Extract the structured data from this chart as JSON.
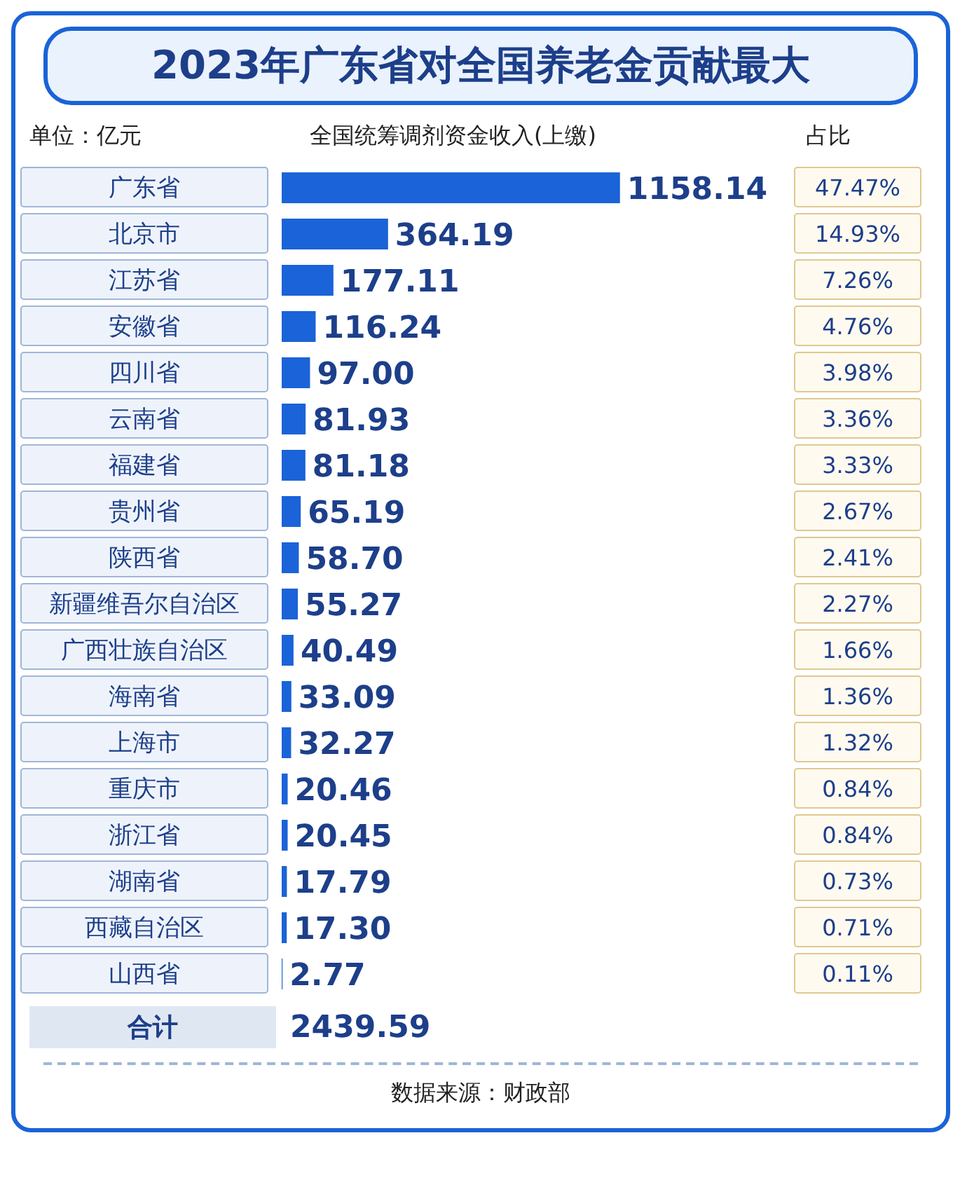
{
  "chart_data": {
    "type": "bar",
    "orientation": "horizontal",
    "title": "2023年广东省对全国养老金贡献最大",
    "categories": [
      "广东省",
      "北京市",
      "江苏省",
      "安徽省",
      "四川省",
      "云南省",
      "福建省",
      "贵州省",
      "陕西省",
      "新疆维吾尔自治区",
      "广西壮族自治区",
      "海南省",
      "上海市",
      "重庆市",
      "浙江省",
      "湖南省",
      "西藏自治区",
      "山西省"
    ],
    "values": [
      1158.14,
      364.19,
      177.11,
      116.24,
      97.0,
      81.93,
      81.18,
      65.19,
      58.7,
      55.27,
      40.49,
      33.09,
      32.27,
      20.46,
      20.45,
      17.79,
      17.3,
      2.77
    ],
    "value_labels": [
      "1158.14",
      "364.19",
      "177.11",
      "116.24",
      "97.00",
      "81.93",
      "81.18",
      "65.19",
      "58.70",
      "55.27",
      "40.49",
      "33.09",
      "32.27",
      "20.46",
      "20.45",
      "17.79",
      "17.30",
      "2.77"
    ],
    "color": "#1a63d8",
    "annotations": [
      "单位：亿元",
      "全国统筹调剂资金收入(上缴)",
      "占比",
      "合计",
      "2439.59",
      "数据来源：财政部",
      "47.47%",
      "14.93%",
      "7.26%",
      "4.76%",
      "3.98%",
      "3.36%",
      "3.33%",
      "2.67%",
      "2.41%",
      "2.27%",
      "1.66%",
      "1.36%",
      "1.32%",
      "0.84%",
      "0.84%",
      "0.73%",
      "0.71%",
      "0.11%"
    ]
  }
}
